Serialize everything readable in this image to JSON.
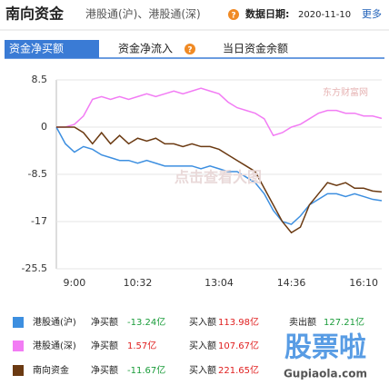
{
  "header": {
    "title": "南向资金",
    "subtitle": "港股通(沪)、港股通(深)",
    "date_label": "数据日期:",
    "date": "2020-11-10",
    "more": "更多"
  },
  "tabs": [
    "资金净买额",
    "资金净流入",
    "当日资金余额"
  ],
  "chart_data": {
    "type": "line",
    "categories": [
      null,
      null,
      "9:00",
      null,
      null,
      null,
      null,
      null,
      null,
      "10:32",
      null,
      null,
      null,
      null,
      null,
      null,
      null,
      null,
      "13:04",
      null,
      null,
      null,
      null,
      null,
      null,
      null,
      "14:36",
      null,
      null,
      null,
      null,
      null,
      null,
      null,
      "16:10",
      null,
      null
    ],
    "series": [
      {
        "name": "港股通(沪)",
        "color": "#3d8fe0",
        "values": [
          0,
          -3,
          -4.5,
          -3.5,
          -4,
          -5,
          -5.5,
          -6,
          -6,
          -6.5,
          -6,
          -6.5,
          -7,
          -7,
          -7,
          -7,
          -7.5,
          -7,
          -7.5,
          -8,
          -8,
          -9,
          -10,
          -12,
          -15,
          -17,
          -17.5,
          -16,
          -14,
          -13,
          -12,
          -12,
          -12.5,
          -12,
          -12.5,
          -13,
          -13.24
        ]
      },
      {
        "name": "港股通(深)",
        "color": "#f27cf4",
        "values": [
          0,
          0,
          0.5,
          2,
          5,
          5.5,
          5,
          5.5,
          5,
          5.5,
          6,
          5.5,
          6,
          6.5,
          6,
          6.5,
          7,
          6.5,
          6,
          4.5,
          3.5,
          3,
          2.5,
          1.5,
          -1.5,
          -1,
          0,
          0.5,
          1.5,
          2.5,
          3,
          3,
          2.5,
          2.5,
          2,
          2,
          1.57
        ]
      },
      {
        "name": "南向资金",
        "color": "#6b3a12",
        "values": [
          0,
          0,
          0,
          -1,
          -3,
          -1,
          -3,
          -1.5,
          -3,
          -2,
          -2.5,
          -2,
          -3,
          -3,
          -3.5,
          -3,
          -3.5,
          -3.5,
          -4,
          -5,
          -6,
          -7,
          -8,
          -11,
          -14,
          -17,
          -19,
          -18,
          -14,
          -12,
          -10,
          -10.5,
          -10,
          -11,
          -11,
          -11.5,
          -11.67
        ]
      }
    ],
    "ylim": [
      -25.5,
      8.5
    ],
    "yticks": [
      8.5,
      0,
      -8.5,
      -17,
      -25.5
    ],
    "grid": true
  },
  "table": {
    "rows": [
      [
        "港股通(沪)",
        "净买额",
        "-13.24亿",
        "买入额",
        "113.98亿",
        "卖出额",
        "127.21亿"
      ],
      [
        "港股通(深)",
        "净买额",
        "1.57亿",
        "买入额",
        "107.67亿"
      ],
      [
        "南向资金",
        "净买额",
        "-11.67亿",
        "买入额",
        "221.65亿"
      ]
    ]
  },
  "watermarks": {
    "center": "点击查看大图",
    "logo": "东方财富网",
    "corner": "股票啦",
    "corner_url": "Gupiaola.com"
  }
}
